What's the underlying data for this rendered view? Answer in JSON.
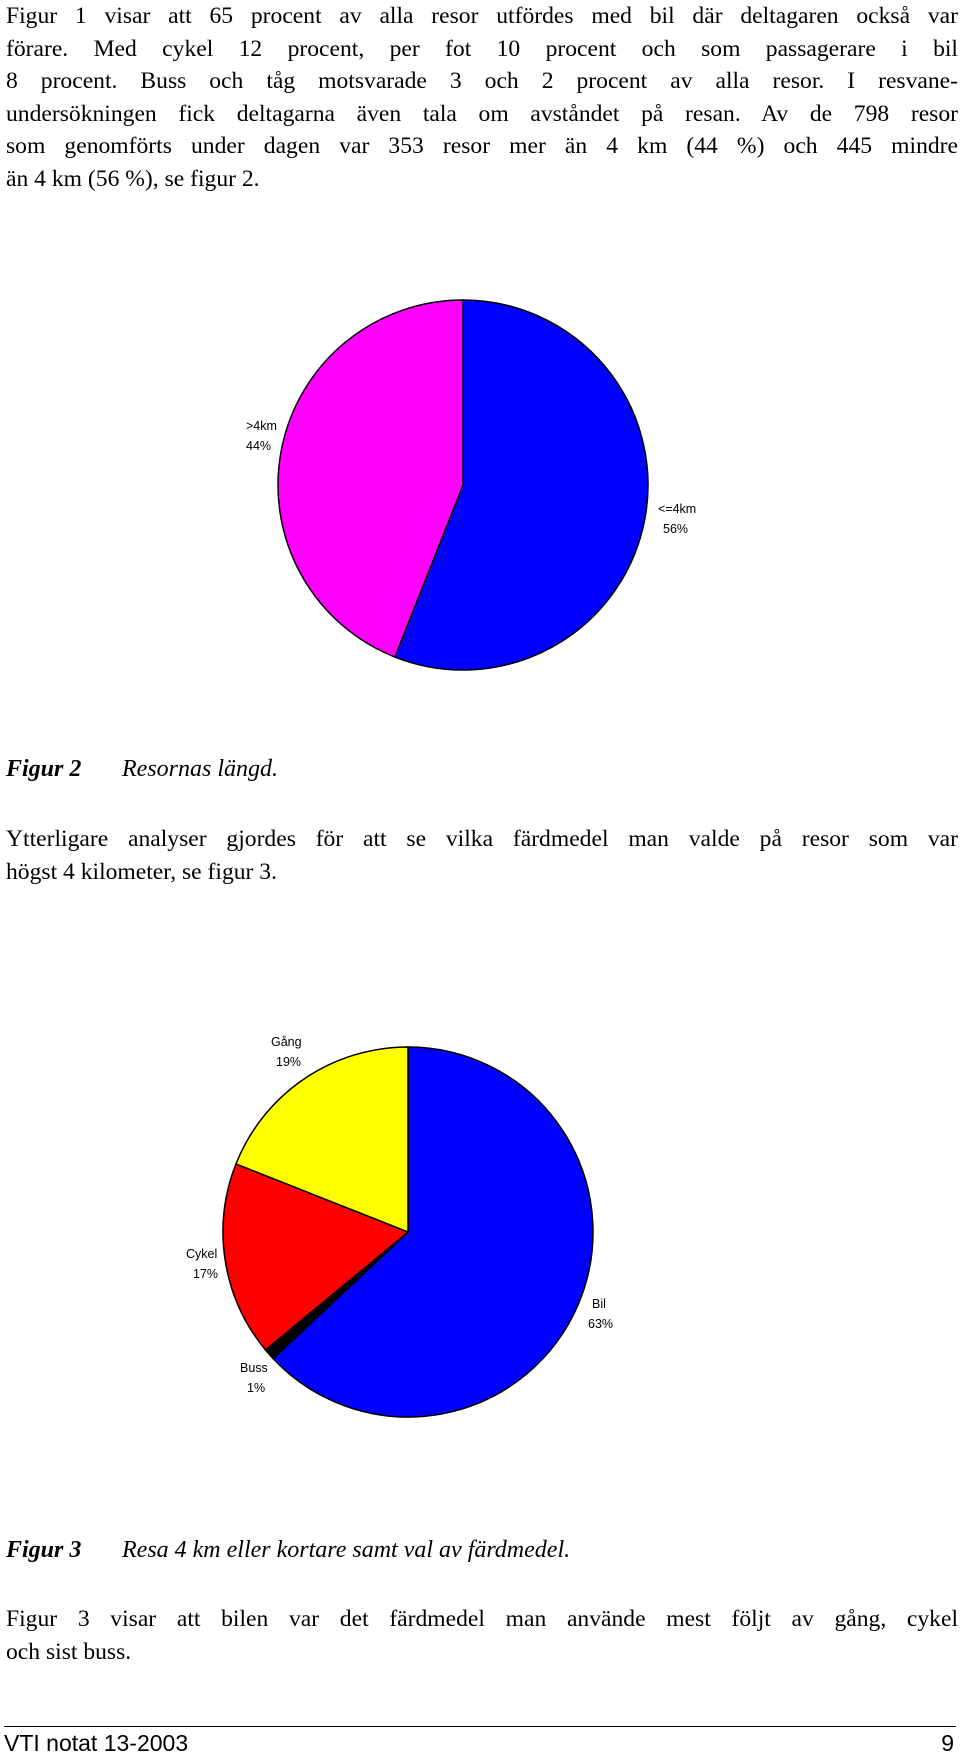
{
  "paragraphs": {
    "intro": [
      "Figur 1 visar att 65 procent av alla resor utfördes med bil där deltagaren också var",
      "förare. Med cykel 12 procent, per fot 10 procent och som passagerare i bil",
      "8 procent. Buss och tåg motsvarade 3 och 2 procent av alla resor. I resvane-",
      "undersökningen fick deltagarna även tala om avståndet på resan. Av de 798 resor",
      "som genomförts under dagen var 353 resor mer än 4 km (44 %) och 445 mindre",
      "än 4 km (56 %), se figur 2."
    ],
    "middle": [
      "Ytterligare analyser gjordes för att se vilka färdmedel man valde på resor som var",
      "högst 4 kilometer, se figur 3."
    ],
    "closing": [
      "Figur 3 visar att bilen var det färdmedel man använde mest följt av gång, cykel",
      "och sist buss."
    ]
  },
  "figure2": {
    "caption_num": "Figur 2",
    "caption_text": "Resornas längd."
  },
  "figure3": {
    "caption_num": "Figur 3",
    "caption_text": "Resa 4 km eller kortare samt val av färdmedel."
  },
  "chart_data": [
    {
      "type": "pie",
      "title": "",
      "slices": [
        {
          "label": "<=4km",
          "pct_label": "56%",
          "value": 56,
          "color": "#0000ff"
        },
        {
          "label": ">4km",
          "pct_label": "44%",
          "value": 44,
          "color": "#ff00ff"
        }
      ]
    },
    {
      "type": "pie",
      "title": "",
      "slices": [
        {
          "label": "Bil",
          "pct_label": "63%",
          "value": 63,
          "color": "#0000ff"
        },
        {
          "label": "Buss",
          "pct_label": "1%",
          "value": 1,
          "color": "#000000"
        },
        {
          "label": "Cykel",
          "pct_label": "17%",
          "value": 17,
          "color": "#ff0000"
        },
        {
          "label": "Gång",
          "pct_label": "19%",
          "value": 19,
          "color": "#ffff00"
        }
      ]
    }
  ],
  "footer": {
    "left": "VTI notat 13-2003",
    "right": "9"
  }
}
